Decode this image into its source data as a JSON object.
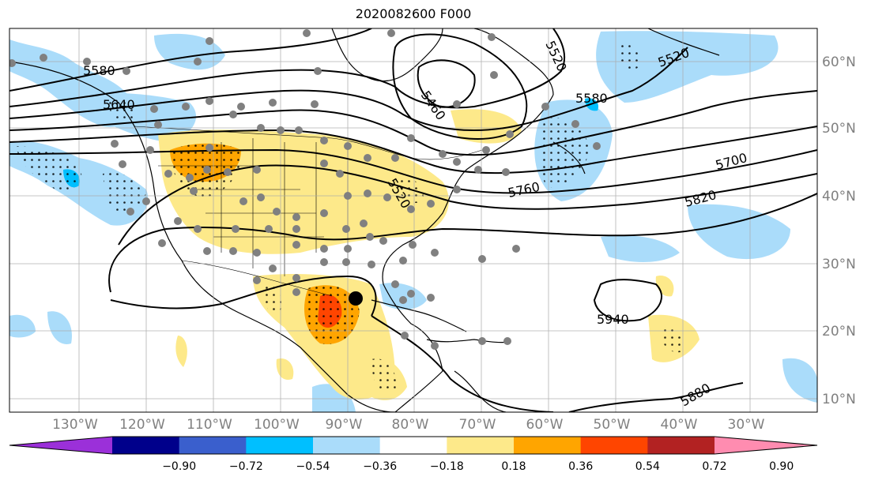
{
  "title": "2020082600 F000",
  "lat_labels": [
    "60°N",
    "50°N",
    "40°N",
    "30°N",
    "20°N",
    "10°N"
  ],
  "lon_labels": [
    "130°W",
    "120°W",
    "110°W",
    "100°W",
    "90°W",
    "80°W",
    "70°W",
    "60°W",
    "50°W",
    "40°W",
    "30°W"
  ],
  "contour_labels": [
    "5520",
    "5580",
    "5640",
    "5460",
    "5580",
    "5520",
    "5700",
    "5760",
    "5820",
    "5940",
    "5880",
    "5520"
  ],
  "colorbar": {
    "ticks": [
      "−0.90",
      "−0.72",
      "−0.54",
      "−0.36",
      "−0.18",
      "0.18",
      "0.36",
      "0.54",
      "0.72",
      "0.90"
    ],
    "colors": [
      "#9b30d9",
      "#00008b",
      "#3a5fcd",
      "#00bfff",
      "#aadcfa",
      "#ffffff",
      "#fde98a",
      "#ffa500",
      "#ff4500",
      "#b22222",
      "#ff8cb0"
    ]
  },
  "colors": {
    "land_outline": "#000000",
    "station_dot": "#808080",
    "grid": "#aaaaaa",
    "light_blue": "#aadcfa",
    "blue": "#00bfff",
    "yellow": "#fde98a",
    "orange": "#ffa500",
    "red": "#ff4500"
  }
}
